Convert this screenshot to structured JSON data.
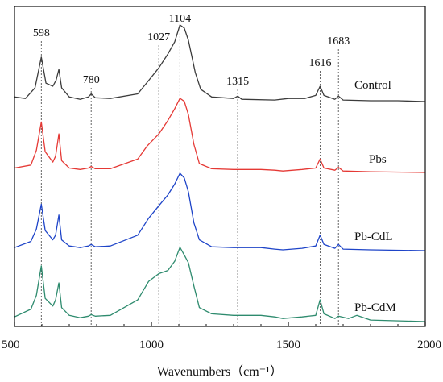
{
  "chart_data": {
    "type": "line",
    "xlabel": "Wavenumbers（cm⁻¹）",
    "ylabel": "",
    "xlim": [
      500,
      2000
    ],
    "x_ticks": [
      500,
      1000,
      1500,
      2000
    ],
    "x_tick_labels": [
      "500",
      "1000",
      "1500",
      "2000"
    ],
    "grid": false,
    "peak_lines": [
      {
        "x": 598,
        "label": "598"
      },
      {
        "x": 780,
        "label": "780"
      },
      {
        "x": 1027,
        "label": "1027"
      },
      {
        "x": 1104,
        "label": "1104"
      },
      {
        "x": 1315,
        "label": "1315"
      },
      {
        "x": 1616,
        "label": "1616"
      },
      {
        "x": 1683,
        "label": "1683"
      }
    ],
    "series": [
      {
        "name": "Control",
        "color": "#3c3c3c",
        "points": [
          [
            500,
            0.06
          ],
          [
            540,
            0.04
          ],
          [
            575,
            0.18
          ],
          [
            598,
            0.58
          ],
          [
            615,
            0.24
          ],
          [
            640,
            0.2
          ],
          [
            652,
            0.28
          ],
          [
            662,
            0.42
          ],
          [
            672,
            0.18
          ],
          [
            700,
            0.06
          ],
          [
            740,
            0.03
          ],
          [
            770,
            0.06
          ],
          [
            780,
            0.1
          ],
          [
            795,
            0.05
          ],
          [
            850,
            0.04
          ],
          [
            950,
            0.1
          ],
          [
            1000,
            0.32
          ],
          [
            1027,
            0.44
          ],
          [
            1060,
            0.62
          ],
          [
            1085,
            0.78
          ],
          [
            1104,
            1.0
          ],
          [
            1120,
            0.96
          ],
          [
            1135,
            0.8
          ],
          [
            1160,
            0.38
          ],
          [
            1180,
            0.16
          ],
          [
            1220,
            0.06
          ],
          [
            1300,
            0.04
          ],
          [
            1315,
            0.07
          ],
          [
            1330,
            0.03
          ],
          [
            1450,
            0.02
          ],
          [
            1500,
            0.04
          ],
          [
            1560,
            0.04
          ],
          [
            1600,
            0.08
          ],
          [
            1616,
            0.2
          ],
          [
            1630,
            0.08
          ],
          [
            1670,
            0.03
          ],
          [
            1683,
            0.07
          ],
          [
            1700,
            0.02
          ],
          [
            1800,
            0.01
          ],
          [
            1900,
            0.01
          ],
          [
            2000,
            0.0
          ]
        ]
      },
      {
        "name": "Pbs",
        "color": "#e53935",
        "points": [
          [
            500,
            0.06
          ],
          [
            560,
            0.1
          ],
          [
            580,
            0.3
          ],
          [
            598,
            0.68
          ],
          [
            612,
            0.28
          ],
          [
            640,
            0.14
          ],
          [
            650,
            0.22
          ],
          [
            662,
            0.52
          ],
          [
            672,
            0.16
          ],
          [
            700,
            0.06
          ],
          [
            740,
            0.04
          ],
          [
            770,
            0.06
          ],
          [
            780,
            0.08
          ],
          [
            795,
            0.05
          ],
          [
            850,
            0.05
          ],
          [
            950,
            0.18
          ],
          [
            985,
            0.36
          ],
          [
            1027,
            0.52
          ],
          [
            1060,
            0.7
          ],
          [
            1085,
            0.86
          ],
          [
            1104,
            1.0
          ],
          [
            1120,
            0.96
          ],
          [
            1135,
            0.78
          ],
          [
            1155,
            0.38
          ],
          [
            1175,
            0.12
          ],
          [
            1220,
            0.05
          ],
          [
            1300,
            0.04
          ],
          [
            1400,
            0.04
          ],
          [
            1450,
            0.03
          ],
          [
            1480,
            0.02
          ],
          [
            1550,
            0.04
          ],
          [
            1600,
            0.06
          ],
          [
            1616,
            0.18
          ],
          [
            1630,
            0.06
          ],
          [
            1670,
            0.03
          ],
          [
            1683,
            0.07
          ],
          [
            1700,
            0.02
          ],
          [
            1800,
            0.01
          ],
          [
            2000,
            0.0
          ]
        ]
      },
      {
        "name": "Pb-CdL",
        "color": "#1e44c8",
        "points": [
          [
            500,
            0.04
          ],
          [
            560,
            0.12
          ],
          [
            580,
            0.28
          ],
          [
            598,
            0.6
          ],
          [
            612,
            0.26
          ],
          [
            640,
            0.14
          ],
          [
            650,
            0.2
          ],
          [
            662,
            0.46
          ],
          [
            672,
            0.14
          ],
          [
            700,
            0.06
          ],
          [
            740,
            0.04
          ],
          [
            770,
            0.06
          ],
          [
            780,
            0.08
          ],
          [
            795,
            0.05
          ],
          [
            850,
            0.06
          ],
          [
            950,
            0.2
          ],
          [
            990,
            0.42
          ],
          [
            1027,
            0.58
          ],
          [
            1060,
            0.72
          ],
          [
            1085,
            0.86
          ],
          [
            1104,
            1.0
          ],
          [
            1120,
            0.94
          ],
          [
            1135,
            0.76
          ],
          [
            1155,
            0.36
          ],
          [
            1175,
            0.14
          ],
          [
            1220,
            0.05
          ],
          [
            1300,
            0.04
          ],
          [
            1400,
            0.04
          ],
          [
            1450,
            0.02
          ],
          [
            1480,
            0.01
          ],
          [
            1550,
            0.03
          ],
          [
            1600,
            0.06
          ],
          [
            1616,
            0.2
          ],
          [
            1630,
            0.08
          ],
          [
            1670,
            0.03
          ],
          [
            1683,
            0.08
          ],
          [
            1700,
            0.02
          ],
          [
            1800,
            0.01
          ],
          [
            2000,
            0.0
          ]
        ]
      },
      {
        "name": "Pb-CdM",
        "color": "#2e8b6e",
        "points": [
          [
            500,
            0.06
          ],
          [
            560,
            0.16
          ],
          [
            580,
            0.34
          ],
          [
            598,
            0.72
          ],
          [
            612,
            0.3
          ],
          [
            640,
            0.2
          ],
          [
            650,
            0.28
          ],
          [
            662,
            0.5
          ],
          [
            672,
            0.18
          ],
          [
            700,
            0.08
          ],
          [
            740,
            0.05
          ],
          [
            770,
            0.07
          ],
          [
            780,
            0.09
          ],
          [
            795,
            0.07
          ],
          [
            850,
            0.08
          ],
          [
            950,
            0.28
          ],
          [
            990,
            0.52
          ],
          [
            1027,
            0.62
          ],
          [
            1060,
            0.66
          ],
          [
            1085,
            0.78
          ],
          [
            1104,
            0.96
          ],
          [
            1120,
            0.86
          ],
          [
            1135,
            0.76
          ],
          [
            1155,
            0.46
          ],
          [
            1175,
            0.18
          ],
          [
            1220,
            0.1
          ],
          [
            1300,
            0.08
          ],
          [
            1400,
            0.08
          ],
          [
            1450,
            0.06
          ],
          [
            1480,
            0.04
          ],
          [
            1550,
            0.06
          ],
          [
            1600,
            0.08
          ],
          [
            1616,
            0.28
          ],
          [
            1630,
            0.1
          ],
          [
            1670,
            0.04
          ],
          [
            1683,
            0.07
          ],
          [
            1720,
            0.04
          ],
          [
            1750,
            0.08
          ],
          [
            1800,
            0.02
          ],
          [
            2000,
            0.0
          ]
        ]
      }
    ]
  }
}
